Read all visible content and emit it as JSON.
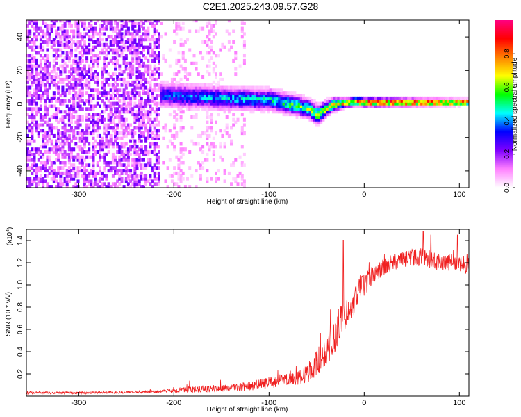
{
  "title": "C2E1.2025.243.09.57.G28",
  "chart_data": [
    {
      "type": "heatmap",
      "title": "C2E1.2025.243.09.57.G28",
      "xlabel": "Height of straight line (km)",
      "ylabel": "Frequency (Hz)",
      "xlim": [
        -355,
        110
      ],
      "ylim": [
        -50,
        50
      ],
      "x_ticks": [
        -300,
        -200,
        -100,
        0,
        100
      ],
      "y_ticks": [
        -40,
        -20,
        0,
        20,
        40
      ],
      "colorbar": {
        "label": "Normalized spectral amplitude",
        "range": [
          0,
          1
        ],
        "ticks": [
          "0.0",
          "0.2",
          "0.4",
          "0.6",
          "0.8"
        ],
        "tick_values": [
          0.0,
          0.2,
          0.4,
          0.6,
          0.8
        ],
        "colormap": [
          "#ffffff",
          "#ff80ff",
          "#8000ff",
          "#0000ff",
          "#00ffff",
          "#00ff00",
          "#ffff00",
          "#ff8000",
          "#ff0000",
          "#ff0080"
        ]
      },
      "regions": [
        {
          "name": "noise",
          "x_range": [
            -355,
            -215
          ],
          "freq_range": [
            -50,
            50
          ],
          "amplitude": [
            0.05,
            0.25
          ]
        },
        {
          "name": "partial-noise",
          "x_range": [
            -215,
            -125
          ],
          "freq_range": [
            -50,
            50
          ],
          "amplitude": [
            0.02,
            0.12
          ]
        },
        {
          "name": "signal-band",
          "x_range": [
            -215,
            110
          ],
          "center_freq": [
            [
              -215,
              5
            ],
            [
              -150,
              3
            ],
            [
              -100,
              2
            ],
            [
              -60,
              -3
            ],
            [
              -50,
              -7
            ],
            [
              -35,
              -1
            ],
            [
              -10,
              1
            ],
            [
              0,
              0.5
            ],
            [
              110,
              0.5
            ]
          ],
          "half_width": [
            [
              -215,
              8
            ],
            [
              -100,
              7
            ],
            [
              -50,
              6
            ],
            [
              -20,
              3
            ],
            [
              110,
              2
            ]
          ],
          "peak_amplitude": [
            [
              -215,
              0.35
            ],
            [
              -100,
              0.45
            ],
            [
              -60,
              0.6
            ],
            [
              -20,
              0.75
            ],
            [
              0,
              0.9
            ],
            [
              110,
              0.95
            ]
          ]
        }
      ]
    },
    {
      "type": "line",
      "xlabel": "Height of straight line (km)",
      "ylabel": "SNR (10 * v/v)",
      "scale_label": "(x10",
      "scale_exp": "4",
      "scale_close": ")",
      "xlim": [
        -355,
        110
      ],
      "ylim": [
        0,
        1.5
      ],
      "x_ticks": [
        -300,
        -200,
        -100,
        0,
        100
      ],
      "y_ticks": [
        0.2,
        0.4,
        0.6,
        0.8,
        1.0,
        1.2,
        1.4
      ],
      "y_tick_labels": [
        "0.2",
        "0.4",
        "0.6",
        "0.8",
        "1.0",
        "1.2",
        "1.4"
      ],
      "color": "#f02020",
      "series": [
        {
          "name": "SNR",
          "x": [
            -355,
            -300,
            -250,
            -220,
            -200,
            -180,
            -150,
            -120,
            -100,
            -80,
            -70,
            -60,
            -50,
            -40,
            -30,
            -25,
            -20,
            -15,
            -10,
            -5,
            0,
            10,
            20,
            30,
            40,
            50,
            60,
            70,
            80,
            90,
            100,
            110
          ],
          "y": [
            0.03,
            0.03,
            0.035,
            0.04,
            0.05,
            0.06,
            0.07,
            0.09,
            0.12,
            0.15,
            0.16,
            0.2,
            0.3,
            0.4,
            0.55,
            0.7,
            0.72,
            0.8,
            0.85,
            0.95,
            1.0,
            1.1,
            1.15,
            1.2,
            1.22,
            1.25,
            1.25,
            1.23,
            1.2,
            1.2,
            1.18,
            1.18
          ],
          "noise": [
            0.01,
            0.01,
            0.01,
            0.012,
            0.02,
            0.03,
            0.03,
            0.04,
            0.05,
            0.06,
            0.06,
            0.08,
            0.12,
            0.15,
            0.15,
            0.15,
            0.12,
            0.12,
            0.12,
            0.12,
            0.1,
            0.08,
            0.08,
            0.08,
            0.08,
            0.08,
            0.08,
            0.08,
            0.08,
            0.08,
            0.08,
            0.08
          ],
          "spikes": [
            [
              -22,
              1.4
            ],
            [
              -30,
              0.65
            ],
            [
              62,
              1.48
            ],
            [
              70,
              1.45
            ],
            [
              98,
              1.45
            ]
          ]
        }
      ]
    }
  ]
}
